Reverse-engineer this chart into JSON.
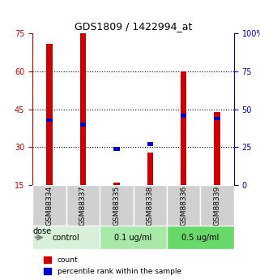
{
  "title": "GDS1809 / 1422994_at",
  "samples": [
    "GSM88334",
    "GSM88337",
    "GSM88335",
    "GSM88338",
    "GSM88336",
    "GSM88339"
  ],
  "groups": [
    "control",
    "control",
    "0.1 ug/ml",
    "0.1 ug/ml",
    "0.5 ug/ml",
    "0.5 ug/ml"
  ],
  "red_values": [
    71,
    75,
    16,
    28,
    60,
    44
  ],
  "blue_values": [
    43,
    40,
    24,
    27,
    46,
    44
  ],
  "ylim_left": [
    15,
    75
  ],
  "ylim_right": [
    0,
    100
  ],
  "yticks_left": [
    15,
    30,
    45,
    60,
    75
  ],
  "yticks_right": [
    0,
    25,
    50,
    75,
    100
  ],
  "ytick_labels_right": [
    "0",
    "25",
    "50",
    "75",
    "100%"
  ],
  "left_axis_color": "#cc0000",
  "right_axis_color": "#0000cc",
  "bar_width": 0.35,
  "group_colors": [
    "#d8f0d8",
    "#a0e8a0",
    "#50d050"
  ],
  "group_label_colors": [
    "#e8f8e8",
    "#b8edb8",
    "#78e878"
  ],
  "sample_bg_color": "#d0d0d0",
  "dose_label": "dose",
  "legend_items": [
    "count",
    "percentile rank within the sample"
  ],
  "grid_color": "#000000",
  "grid_style": "dotted"
}
